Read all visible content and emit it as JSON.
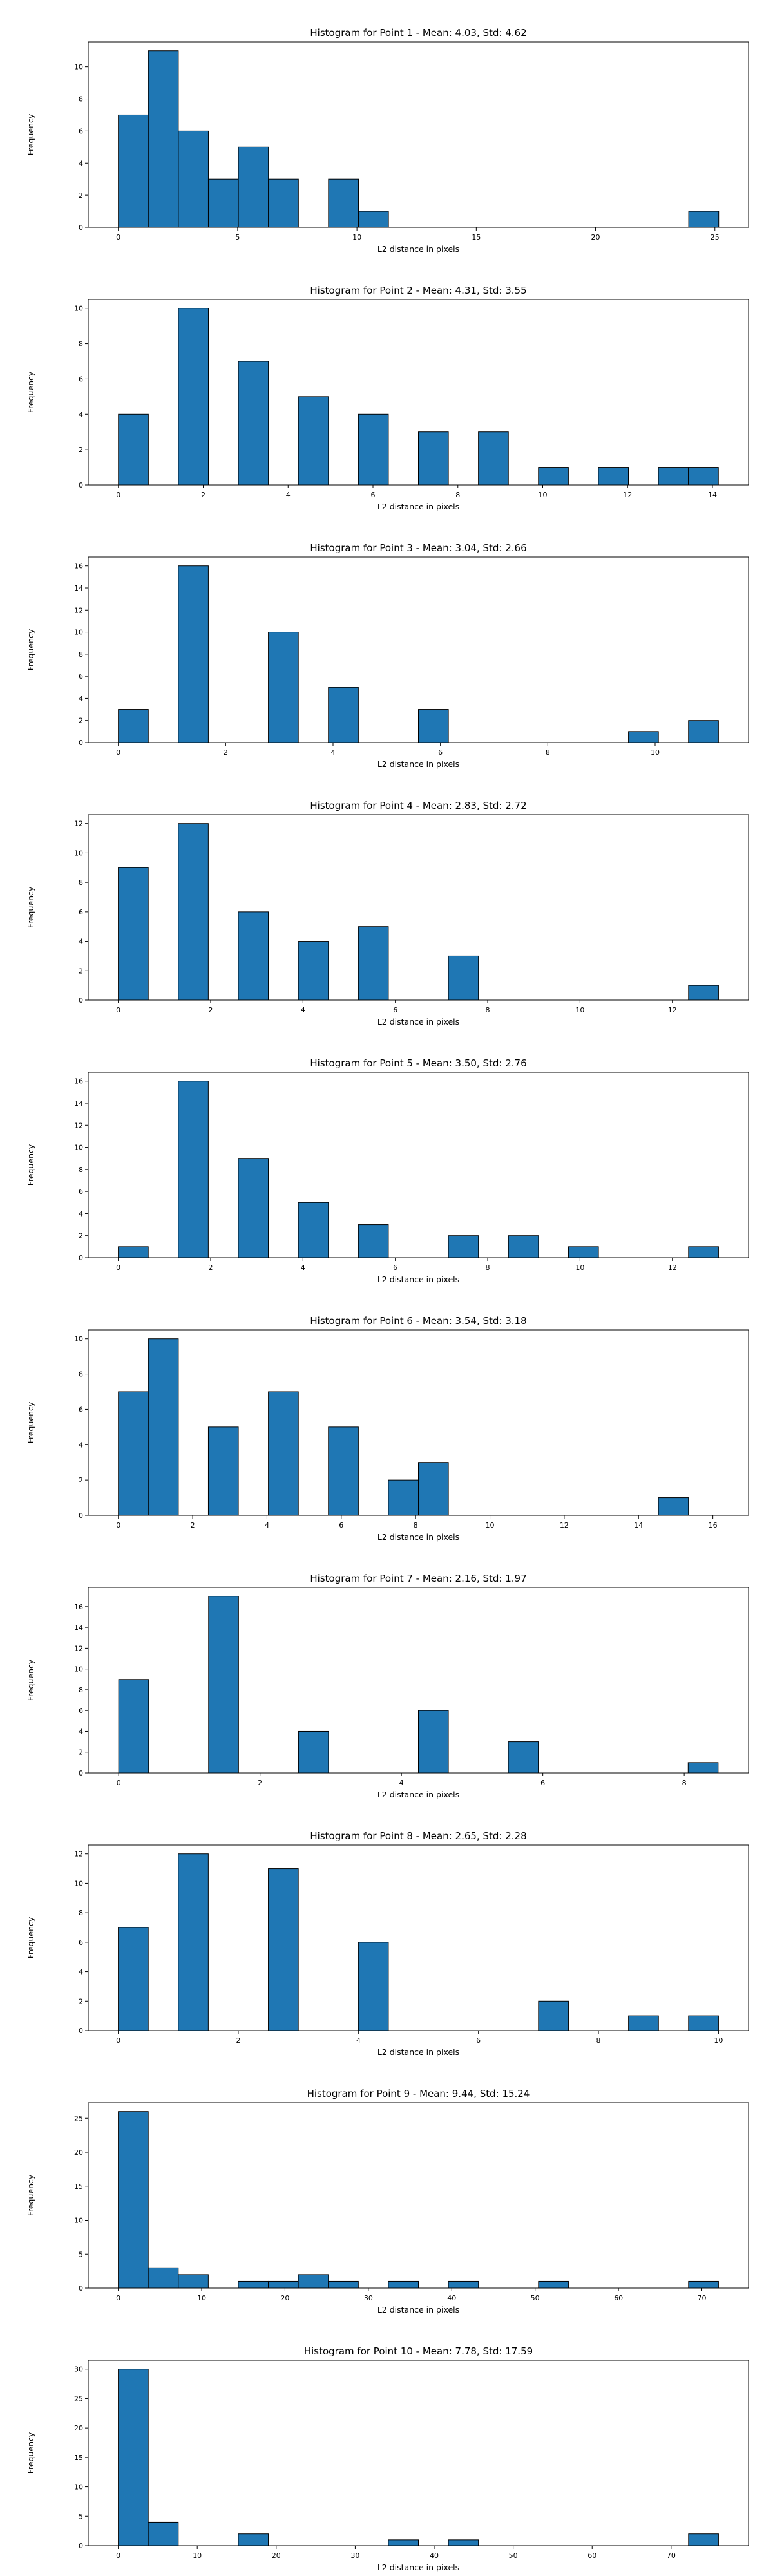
{
  "chart_data": [
    {
      "type": "bar",
      "title": "Histogram for Point 1 - Mean: 4.03, Std: 4.62",
      "xlabel": "L2 distance in pixels",
      "ylabel": "Frequency",
      "xlim": [
        -1.26,
        26.41
      ],
      "ylim": [
        0,
        11.55
      ],
      "xticks": [
        0,
        5,
        10,
        15,
        20,
        25
      ],
      "xtick_labels": [
        "0",
        "5",
        "10",
        "15",
        "20",
        "25"
      ],
      "yticks": [
        0,
        2,
        4,
        6,
        8,
        10
      ],
      "bin_edges": [
        0.0,
        1.258,
        2.516,
        3.774,
        5.032,
        6.29,
        7.548,
        8.806,
        10.064,
        11.322,
        12.58,
        13.838,
        15.096,
        16.354,
        17.612,
        18.87,
        20.128,
        21.386,
        22.644,
        23.902,
        25.16
      ],
      "values": [
        7,
        11,
        6,
        3,
        5,
        3,
        0,
        3,
        1,
        0,
        0,
        0,
        0,
        0,
        0,
        0,
        0,
        0,
        0,
        1
      ],
      "grid": false,
      "bar_color": "#1f77b4"
    },
    {
      "type": "bar",
      "title": "Histogram for Point 2 - Mean: 4.31, Std: 3.55",
      "xlabel": "L2 distance in pixels",
      "ylabel": "Frequency",
      "xlim": [
        -0.71,
        14.85
      ],
      "ylim": [
        0,
        10.5
      ],
      "xticks": [
        0,
        2,
        4,
        6,
        8,
        10,
        12,
        14
      ],
      "xtick_labels": [
        "0",
        "2",
        "4",
        "6",
        "8",
        "10",
        "12",
        "14"
      ],
      "yticks": [
        0,
        2,
        4,
        6,
        8,
        10
      ],
      "bin_edges": [
        0.0,
        0.707,
        1.414,
        2.121,
        2.828,
        3.535,
        4.242,
        4.949,
        5.656,
        6.363,
        7.07,
        7.777,
        8.484,
        9.191,
        9.898,
        10.605,
        11.312,
        12.019,
        12.726,
        13.433,
        14.14
      ],
      "values": [
        4,
        0,
        10,
        0,
        7,
        0,
        5,
        0,
        4,
        0,
        3,
        0,
        3,
        0,
        1,
        0,
        1,
        0,
        1,
        1
      ],
      "grid": false,
      "bar_color": "#1f77b4"
    },
    {
      "type": "bar",
      "title": "Histogram for Point 3 - Mean: 3.04, Std: 2.66",
      "xlabel": "L2 distance in pixels",
      "ylabel": "Frequency",
      "xlim": [
        -0.56,
        11.74
      ],
      "ylim": [
        0,
        16.8
      ],
      "xticks": [
        0,
        2,
        4,
        6,
        8,
        10
      ],
      "xtick_labels": [
        "0",
        "2",
        "4",
        "6",
        "8",
        "10"
      ],
      "yticks": [
        0,
        2,
        4,
        6,
        8,
        10,
        12,
        14,
        16
      ],
      "bin_edges": [
        0.0,
        0.559,
        1.118,
        1.677,
        2.236,
        2.795,
        3.354,
        3.913,
        4.472,
        5.031,
        5.59,
        6.149,
        6.708,
        7.267,
        7.826,
        8.385,
        8.944,
        9.503,
        10.062,
        10.621,
        11.18
      ],
      "values": [
        3,
        0,
        16,
        0,
        0,
        10,
        0,
        5,
        0,
        0,
        3,
        0,
        0,
        0,
        0,
        0,
        0,
        1,
        0,
        2
      ],
      "grid": false,
      "bar_color": "#1f77b4"
    },
    {
      "type": "bar",
      "title": "Histogram for Point 4 - Mean: 2.83, Std: 2.72",
      "xlabel": "L2 distance in pixels",
      "ylabel": "Frequency",
      "xlim": [
        -0.65,
        13.65
      ],
      "ylim": [
        0,
        12.6
      ],
      "xticks": [
        0,
        2,
        4,
        6,
        8,
        10,
        12
      ],
      "xtick_labels": [
        "0",
        "2",
        "4",
        "6",
        "8",
        "10",
        "12"
      ],
      "yticks": [
        0,
        2,
        4,
        6,
        8,
        10,
        12
      ],
      "bin_edges": [
        0.0,
        0.65,
        1.3,
        1.95,
        2.6,
        3.25,
        3.9,
        4.55,
        5.2,
        5.85,
        6.5,
        7.15,
        7.8,
        8.45,
        9.1,
        9.75,
        10.4,
        11.05,
        11.7,
        12.35,
        13.0
      ],
      "values": [
        9,
        0,
        12,
        0,
        6,
        0,
        4,
        0,
        5,
        0,
        0,
        3,
        0,
        0,
        0,
        0,
        0,
        0,
        0,
        1
      ],
      "grid": false,
      "bar_color": "#1f77b4"
    },
    {
      "type": "bar",
      "title": "Histogram for Point 5 - Mean: 3.50, Std: 2.76",
      "xlabel": "L2 distance in pixels",
      "ylabel": "Frequency",
      "xlim": [
        -0.65,
        13.65
      ],
      "ylim": [
        0,
        16.8
      ],
      "xticks": [
        0,
        2,
        4,
        6,
        8,
        10,
        12
      ],
      "xtick_labels": [
        "0",
        "2",
        "4",
        "6",
        "8",
        "10",
        "12"
      ],
      "yticks": [
        0,
        2,
        4,
        6,
        8,
        10,
        12,
        14,
        16
      ],
      "bin_edges": [
        0.0,
        0.65,
        1.3,
        1.95,
        2.6,
        3.25,
        3.9,
        4.55,
        5.2,
        5.85,
        6.5,
        7.15,
        7.8,
        8.45,
        9.1,
        9.75,
        10.4,
        11.05,
        11.7,
        12.35,
        13.0
      ],
      "values": [
        1,
        0,
        16,
        0,
        9,
        0,
        5,
        0,
        3,
        0,
        0,
        2,
        0,
        2,
        0,
        1,
        0,
        0,
        0,
        1
      ],
      "grid": false,
      "bar_color": "#1f77b4"
    },
    {
      "type": "bar",
      "title": "Histogram for Point 6 - Mean: 3.54, Std: 3.18",
      "xlabel": "L2 distance in pixels",
      "ylabel": "Frequency",
      "xlim": [
        -0.81,
        16.96
      ],
      "ylim": [
        0,
        10.5
      ],
      "xticks": [
        0,
        2,
        4,
        6,
        8,
        10,
        12,
        14,
        16
      ],
      "xtick_labels": [
        "0",
        "2",
        "4",
        "6",
        "8",
        "10",
        "12",
        "14",
        "16"
      ],
      "yticks": [
        0,
        2,
        4,
        6,
        8,
        10
      ],
      "bin_edges": [
        0.0,
        0.8075,
        1.615,
        2.4225,
        3.23,
        4.0375,
        4.845,
        5.6525,
        6.46,
        7.2675,
        8.075,
        8.8825,
        9.69,
        10.4975,
        11.305,
        12.1125,
        12.92,
        13.7275,
        14.535,
        15.3425,
        16.15
      ],
      "values": [
        7,
        10,
        0,
        5,
        0,
        7,
        0,
        5,
        0,
        2,
        3,
        0,
        0,
        0,
        0,
        0,
        0,
        0,
        1,
        0
      ],
      "grid": false,
      "bar_color": "#1f77b4"
    },
    {
      "type": "bar",
      "title": "Histogram for Point 7 - Mean: 2.16, Std: 1.97",
      "xlabel": "L2 distance in pixels",
      "ylabel": "Frequency",
      "xlim": [
        -0.43,
        8.91
      ],
      "ylim": [
        0,
        17.85
      ],
      "xticks": [
        0,
        2,
        4,
        6,
        8
      ],
      "xtick_labels": [
        "0",
        "2",
        "4",
        "6",
        "8"
      ],
      "yticks": [
        0,
        2,
        4,
        6,
        8,
        10,
        12,
        14,
        16
      ],
      "bin_edges": [
        0.0,
        0.424,
        0.848,
        1.272,
        1.696,
        2.12,
        2.544,
        2.968,
        3.392,
        3.816,
        4.24,
        4.664,
        5.088,
        5.512,
        5.936,
        6.36,
        6.784,
        7.208,
        7.632,
        8.056,
        8.48
      ],
      "values": [
        9,
        0,
        0,
        17,
        0,
        0,
        4,
        0,
        0,
        0,
        6,
        0,
        0,
        3,
        0,
        0,
        0,
        0,
        0,
        1
      ],
      "grid": false,
      "bar_color": "#1f77b4"
    },
    {
      "type": "bar",
      "title": "Histogram for Point 8 - Mean: 2.65, Std: 2.28",
      "xlabel": "L2 distance in pixels",
      "ylabel": "Frequency",
      "xlim": [
        -0.5,
        10.5
      ],
      "ylim": [
        0,
        12.6
      ],
      "xticks": [
        0,
        2,
        4,
        6,
        8,
        10
      ],
      "xtick_labels": [
        "0",
        "2",
        "4",
        "6",
        "8",
        "10"
      ],
      "yticks": [
        0,
        2,
        4,
        6,
        8,
        10,
        12
      ],
      "bin_edges": [
        0.0,
        0.5,
        1.0,
        1.5,
        2.0,
        2.5,
        3.0,
        3.5,
        4.0,
        4.5,
        5.0,
        5.5,
        6.0,
        6.5,
        7.0,
        7.5,
        8.0,
        8.5,
        9.0,
        9.5,
        10.0
      ],
      "values": [
        7,
        0,
        12,
        0,
        0,
        11,
        0,
        0,
        6,
        0,
        0,
        0,
        0,
        0,
        2,
        0,
        0,
        1,
        0,
        1
      ],
      "grid": false,
      "bar_color": "#1f77b4"
    },
    {
      "type": "bar",
      "title": "Histogram for Point 9 - Mean: 9.44, Std: 15.24",
      "xlabel": "L2 distance in pixels",
      "ylabel": "Frequency",
      "xlim": [
        -3.6,
        75.6
      ],
      "ylim": [
        0,
        27.3
      ],
      "xticks": [
        0,
        10,
        20,
        30,
        40,
        50,
        60,
        70
      ],
      "xtick_labels": [
        "0",
        "10",
        "20",
        "30",
        "40",
        "50",
        "60",
        "70"
      ],
      "yticks": [
        0,
        5,
        10,
        15,
        20,
        25
      ],
      "bin_edges": [
        0.0,
        3.6,
        7.2,
        10.8,
        14.4,
        18.0,
        21.6,
        25.2,
        28.8,
        32.4,
        36.0,
        39.6,
        43.2,
        46.8,
        50.4,
        54.0,
        57.6,
        61.2,
        64.8,
        68.4,
        72.0
      ],
      "values": [
        26,
        3,
        2,
        0,
        1,
        1,
        2,
        1,
        0,
        1,
        0,
        1,
        0,
        0,
        1,
        0,
        0,
        0,
        0,
        1
      ],
      "grid": false,
      "bar_color": "#1f77b4"
    },
    {
      "type": "bar",
      "title": "Histogram for Point 10 - Mean: 7.78, Std: 17.59",
      "xlabel": "L2 distance in pixels",
      "ylabel": "Frequency",
      "xlim": [
        -3.8,
        79.8
      ],
      "ylim": [
        0,
        31.5
      ],
      "xticks": [
        0,
        10,
        20,
        30,
        40,
        50,
        60,
        70
      ],
      "xtick_labels": [
        "0",
        "10",
        "20",
        "30",
        "40",
        "50",
        "60",
        "70"
      ],
      "yticks": [
        0,
        5,
        10,
        15,
        20,
        25,
        30
      ],
      "bin_edges": [
        0.0,
        3.8,
        7.6,
        11.4,
        15.2,
        19.0,
        22.8,
        26.6,
        30.4,
        34.2,
        38.0,
        41.8,
        45.6,
        49.4,
        53.2,
        57.0,
        60.8,
        64.6,
        68.4,
        72.2,
        76.0
      ],
      "values": [
        30,
        4,
        0,
        0,
        2,
        0,
        0,
        0,
        0,
        1,
        0,
        1,
        0,
        0,
        0,
        0,
        0,
        0,
        0,
        2
      ],
      "grid": false,
      "bar_color": "#1f77b4"
    }
  ]
}
